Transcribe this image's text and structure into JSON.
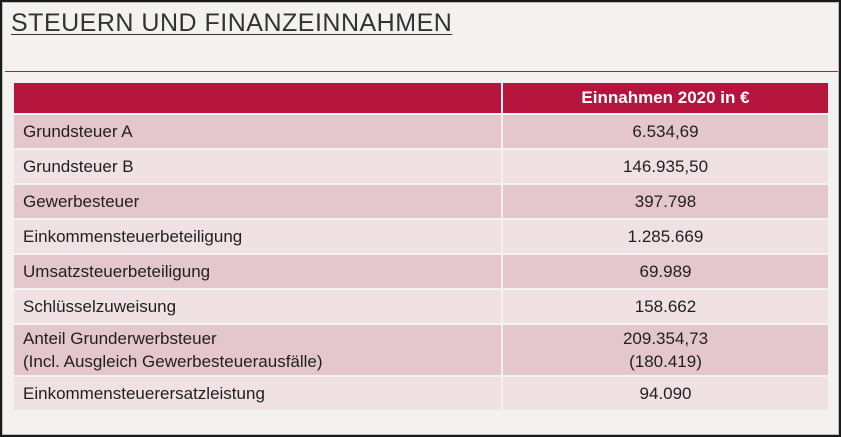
{
  "slide": {
    "title": "STEUERN UND FINANZEINNAHMEN"
  },
  "table": {
    "header_col1": "",
    "header_col2": "Einnahmen 2020 in €",
    "rows": [
      {
        "label": "Grundsteuer A",
        "value": "6.534,69"
      },
      {
        "label": "Grundsteuer B",
        "value": "146.935,50"
      },
      {
        "label": "Gewerbesteuer",
        "value": "397.798"
      },
      {
        "label": "Einkommensteuerbeteiligung",
        "value": "1.285.669"
      },
      {
        "label": "Umsatzsteuerbeteiligung",
        "value": "69.989"
      },
      {
        "label": "Schlüsselzuweisung",
        "value": "158.662"
      },
      {
        "label": "Anteil Grunderwerbsteuer",
        "label_line2": "(Incl. Ausgleich Gewerbesteuerausfälle)",
        "value": "209.354,73",
        "value_line2": "(180.419)"
      },
      {
        "label": "Einkommensteuerersatzleistung",
        "value": "94.090"
      }
    ]
  },
  "colors": {
    "accent": "#b5153d",
    "row_dark": "#e4c7cd",
    "row_light": "#f0e1e4",
    "slide_bg": "#f3f2f1"
  }
}
